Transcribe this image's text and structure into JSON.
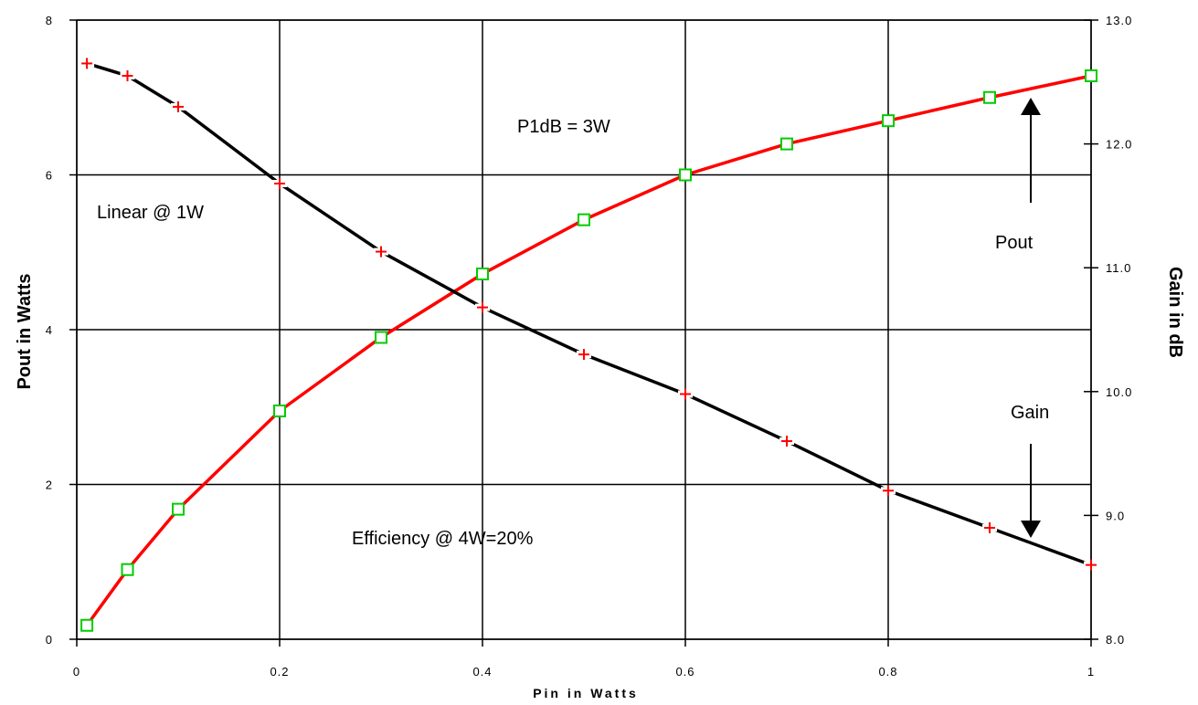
{
  "chart_data": {
    "type": "line",
    "title": "",
    "xlabel": "Pin in Watts",
    "ylabel": "Pout in Watts",
    "y2label": "Gain in dB",
    "xlim": [
      0,
      1
    ],
    "ylim": [
      0,
      8
    ],
    "y2lim": [
      8.0,
      13.0
    ],
    "grid": true,
    "x_ticks": [
      "0",
      "0.2",
      "0.4",
      "0.6",
      "0.8",
      "1"
    ],
    "x_tick_values": [
      0,
      0.2,
      0.4,
      0.6,
      0.8,
      1
    ],
    "y_ticks": [
      "0",
      "2",
      "4",
      "6",
      "8"
    ],
    "y_tick_values": [
      0,
      2,
      4,
      6,
      8
    ],
    "y2_ticks": [
      "8.0",
      "9.0",
      "10.0",
      "11.0",
      "12.0",
      "13.0"
    ],
    "y2_tick_values": [
      8,
      9,
      10,
      11,
      12,
      13
    ],
    "colors": {
      "line": "#ff0000",
      "gain_line": "#000000",
      "marker_square": "#00cc00",
      "marker_plus": "#ff0000",
      "grid": "#000000"
    },
    "series": [
      {
        "axis": "left",
        "marker": "square",
        "x": [
          0.01,
          0.05,
          0.1,
          0.2,
          0.3,
          0.4,
          0.5,
          0.6,
          0.7,
          0.8,
          0.9,
          1.0
        ],
        "values": [
          0.18,
          0.9,
          1.68,
          2.95,
          3.9,
          4.72,
          5.42,
          6.0,
          6.4,
          6.7,
          7.0,
          7.28
        ]
      },
      {
        "axis": "right",
        "marker": "plus",
        "x": [
          0.01,
          0.05,
          0.1,
          0.2,
          0.3,
          0.4,
          0.5,
          0.6,
          0.7,
          0.8,
          0.9,
          1.0
        ],
        "values": [
          12.65,
          12.55,
          12.3,
          11.68,
          11.13,
          10.68,
          10.3,
          9.98,
          9.6,
          9.2,
          8.9,
          8.6
        ]
      }
    ],
    "annotations": [
      {
        "id": "p1db",
        "text": "P1dB = 3W"
      },
      {
        "id": "linear",
        "text": "Linear @ 1W"
      },
      {
        "id": "pout",
        "text": "Pout"
      },
      {
        "id": "gain",
        "text": "Gain"
      },
      {
        "id": "efficiency",
        "text": "Efficiency @ 4W=20%"
      }
    ]
  }
}
